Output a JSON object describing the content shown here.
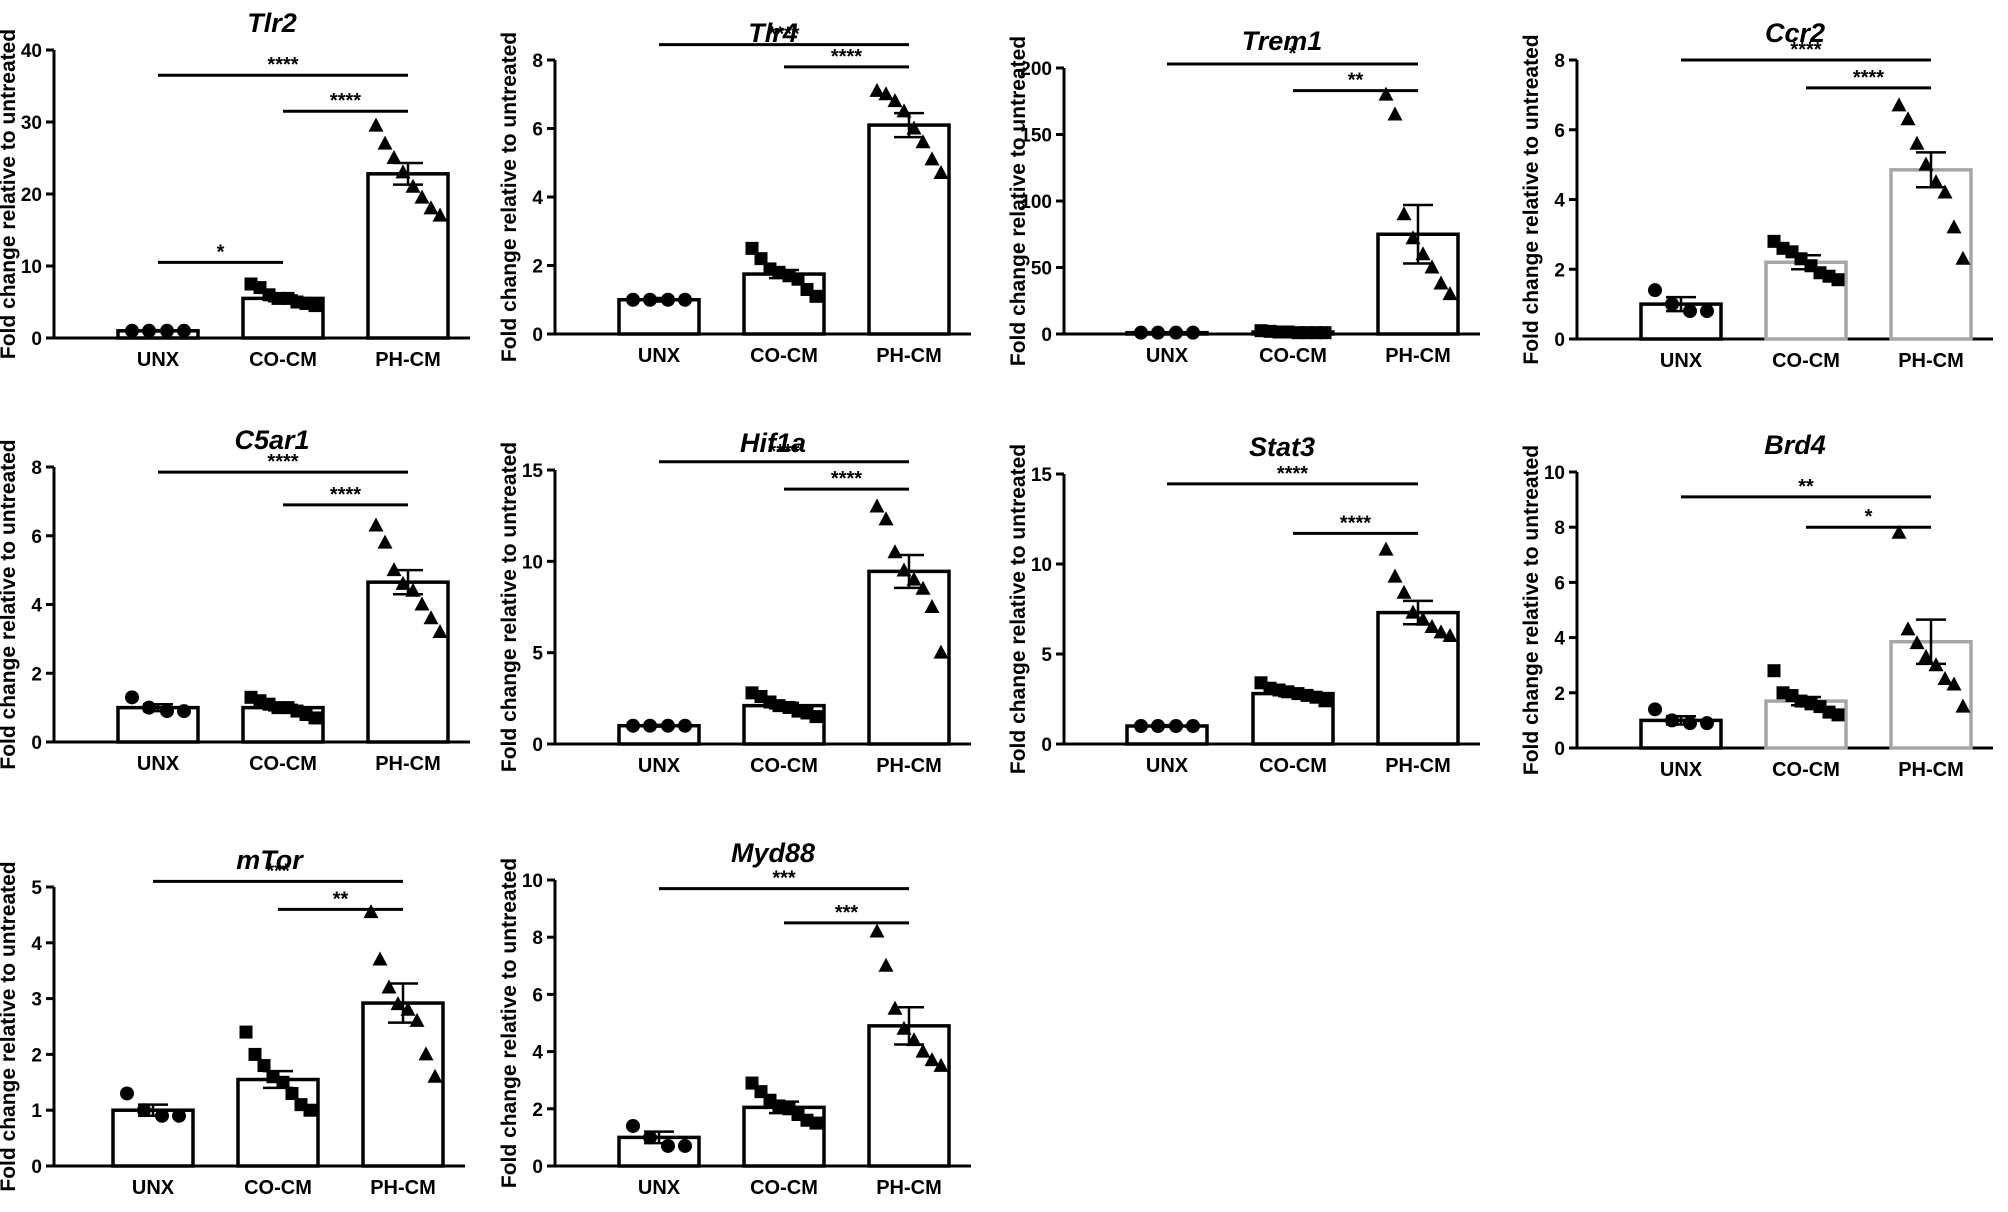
{
  "figure": {
    "ylabel": "Fold change relative to untreated",
    "categories": [
      "UNX",
      "CO-CM",
      "PH-CM"
    ]
  },
  "colors": {
    "black": "#000000",
    "gray": "#a6a6a6",
    "white": "#ffffff"
  },
  "chart_data": [
    {
      "type": "bar",
      "title": "Tlr2",
      "ylim": [
        0,
        40
      ],
      "yticks": [
        0,
        10,
        20,
        30,
        40
      ],
      "bar_color": "black",
      "series": [
        {
          "category": "UNX",
          "mean": 1.0,
          "sem": 0.1,
          "marker": "circle",
          "points": [
            1.0,
            1.0,
            1.0,
            1.0
          ]
        },
        {
          "category": "CO-CM",
          "mean": 5.5,
          "sem": 0.4,
          "marker": "square",
          "points": [
            7.5,
            7.0,
            6.0,
            5.5,
            5.5,
            5.0,
            4.8,
            4.5
          ]
        },
        {
          "category": "PH-CM",
          "mean": 22.8,
          "sem": 1.5,
          "marker": "triangle",
          "points": [
            29.5,
            27.0,
            25.0,
            23.0,
            21.0,
            19.5,
            18.0,
            17.0
          ]
        }
      ],
      "significance": [
        {
          "from": 0,
          "to": 1,
          "label": "*",
          "level": 10.5
        },
        {
          "from": 0,
          "to": 2,
          "label": "****",
          "level": 36.5
        },
        {
          "from": 1,
          "to": 2,
          "label": "****",
          "level": 31.5
        }
      ]
    },
    {
      "type": "bar",
      "title": "Tlr4",
      "ylim": [
        0,
        8
      ],
      "yticks": [
        0,
        2,
        4,
        6,
        8
      ],
      "bar_color": "black",
      "series": [
        {
          "category": "UNX",
          "mean": 1.0,
          "sem": 0.05,
          "marker": "circle",
          "points": [
            1.0,
            1.0,
            1.0,
            1.0
          ]
        },
        {
          "category": "CO-CM",
          "mean": 1.75,
          "sem": 0.12,
          "marker": "square",
          "points": [
            2.5,
            2.2,
            1.9,
            1.8,
            1.7,
            1.6,
            1.3,
            1.1
          ]
        },
        {
          "category": "PH-CM",
          "mean": 6.1,
          "sem": 0.35,
          "marker": "triangle",
          "points": [
            7.1,
            7.0,
            6.8,
            6.5,
            6.0,
            5.6,
            5.1,
            4.7
          ]
        }
      ],
      "significance": [
        {
          "from": 0,
          "to": 2,
          "label": "****",
          "level": 8.45
        },
        {
          "from": 1,
          "to": 2,
          "label": "****",
          "level": 7.8
        }
      ]
    },
    {
      "type": "bar",
      "title": "Trem1",
      "ylim": [
        0,
        200
      ],
      "yticks": [
        0,
        50,
        100,
        150,
        200
      ],
      "bar_color": "black",
      "series": [
        {
          "category": "UNX",
          "mean": 1.0,
          "sem": 0.1,
          "marker": "circle",
          "points": [
            1.0,
            1.0,
            1.0,
            1.0
          ]
        },
        {
          "category": "CO-CM",
          "mean": 1.5,
          "sem": 0.3,
          "marker": "square",
          "points": [
            2.5,
            2.0,
            1.5,
            1.5,
            1.0,
            1.0,
            1.0,
            1.0
          ]
        },
        {
          "category": "PH-CM",
          "mean": 75.0,
          "sem": 22.0,
          "marker": "triangle",
          "points": [
            180.0,
            165.0,
            90.0,
            72.0,
            60.0,
            50.0,
            38.0,
            30.0
          ]
        }
      ],
      "significance": [
        {
          "from": 0,
          "to": 2,
          "label": "*",
          "level": 203
        },
        {
          "from": 1,
          "to": 2,
          "label": "**",
          "level": 183
        }
      ]
    },
    {
      "type": "bar",
      "title": "Ccr2",
      "ylim": [
        0,
        8
      ],
      "yticks": [
        0,
        2,
        4,
        6,
        8
      ],
      "bar_color": "gray",
      "series": [
        {
          "category": "UNX",
          "mean": 1.0,
          "sem": 0.2,
          "marker": "circle",
          "points": [
            1.4,
            1.0,
            0.8,
            0.8
          ]
        },
        {
          "category": "CO-CM",
          "mean": 2.2,
          "sem": 0.2,
          "marker": "square",
          "points": [
            2.8,
            2.6,
            2.5,
            2.3,
            2.1,
            1.9,
            1.8,
            1.7
          ]
        },
        {
          "category": "PH-CM",
          "mean": 4.85,
          "sem": 0.5,
          "marker": "triangle",
          "points": [
            6.7,
            6.3,
            5.6,
            5.0,
            4.5,
            4.2,
            3.2,
            2.3
          ]
        }
      ],
      "significance": [
        {
          "from": 0,
          "to": 2,
          "label": "****",
          "level": 8.0
        },
        {
          "from": 1,
          "to": 2,
          "label": "****",
          "level": 7.2
        }
      ]
    },
    {
      "type": "bar",
      "title": "C5ar1",
      "ylim": [
        0,
        8
      ],
      "yticks": [
        0,
        2,
        4,
        6,
        8
      ],
      "bar_color": "black",
      "series": [
        {
          "category": "UNX",
          "mean": 1.0,
          "sem": 0.1,
          "marker": "circle",
          "points": [
            1.3,
            1.0,
            0.9,
            0.9
          ]
        },
        {
          "category": "CO-CM",
          "mean": 1.0,
          "sem": 0.08,
          "marker": "square",
          "points": [
            1.3,
            1.2,
            1.1,
            1.0,
            1.0,
            0.9,
            0.8,
            0.7
          ]
        },
        {
          "category": "PH-CM",
          "mean": 4.65,
          "sem": 0.35,
          "marker": "triangle",
          "points": [
            6.3,
            5.8,
            5.0,
            4.6,
            4.4,
            4.0,
            3.6,
            3.2
          ]
        }
      ],
      "significance": [
        {
          "from": 0,
          "to": 2,
          "label": "****",
          "level": 7.85
        },
        {
          "from": 1,
          "to": 2,
          "label": "****",
          "level": 6.9
        }
      ]
    },
    {
      "type": "bar",
      "title": "Hif1a",
      "ylim": [
        0,
        15
      ],
      "yticks": [
        0,
        5,
        10,
        15
      ],
      "bar_color": "black",
      "series": [
        {
          "category": "UNX",
          "mean": 1.0,
          "sem": 0.05,
          "marker": "circle",
          "points": [
            1.0,
            1.0,
            1.0,
            1.0
          ]
        },
        {
          "category": "CO-CM",
          "mean": 2.1,
          "sem": 0.15,
          "marker": "square",
          "points": [
            2.8,
            2.6,
            2.3,
            2.1,
            2.0,
            1.8,
            1.7,
            1.5
          ]
        },
        {
          "category": "PH-CM",
          "mean": 9.45,
          "sem": 0.9,
          "marker": "triangle",
          "points": [
            13.0,
            12.3,
            10.5,
            9.5,
            9.0,
            8.5,
            7.5,
            5.0
          ]
        }
      ],
      "significance": [
        {
          "from": 0,
          "to": 2,
          "label": "****",
          "level": 15.45
        },
        {
          "from": 1,
          "to": 2,
          "label": "****",
          "level": 13.95
        }
      ]
    },
    {
      "type": "bar",
      "title": "Stat3",
      "ylim": [
        0,
        15
      ],
      "yticks": [
        0,
        5,
        10,
        15
      ],
      "bar_color": "black",
      "series": [
        {
          "category": "UNX",
          "mean": 1.0,
          "sem": 0.05,
          "marker": "circle",
          "points": [
            1.0,
            1.0,
            1.0,
            1.0
          ]
        },
        {
          "category": "CO-CM",
          "mean": 2.8,
          "sem": 0.15,
          "marker": "square",
          "points": [
            3.4,
            3.1,
            3.0,
            2.9,
            2.8,
            2.7,
            2.6,
            2.4
          ]
        },
        {
          "category": "PH-CM",
          "mean": 7.3,
          "sem": 0.65,
          "marker": "triangle",
          "points": [
            10.8,
            9.3,
            8.4,
            7.3,
            6.9,
            6.5,
            6.2,
            6.0
          ]
        }
      ],
      "significance": [
        {
          "from": 0,
          "to": 2,
          "label": "****",
          "level": 14.45
        },
        {
          "from": 1,
          "to": 2,
          "label": "****",
          "level": 11.7
        }
      ]
    },
    {
      "type": "bar",
      "title": "Brd4",
      "ylim": [
        0,
        10
      ],
      "yticks": [
        0,
        2,
        4,
        6,
        8,
        10
      ],
      "bar_color": "gray",
      "series": [
        {
          "category": "UNX",
          "mean": 1.0,
          "sem": 0.15,
          "marker": "circle",
          "points": [
            1.4,
            1.0,
            0.9,
            0.9
          ]
        },
        {
          "category": "CO-CM",
          "mean": 1.7,
          "sem": 0.15,
          "marker": "square",
          "points": [
            2.8,
            2.0,
            1.9,
            1.7,
            1.6,
            1.5,
            1.3,
            1.2
          ]
        },
        {
          "category": "PH-CM",
          "mean": 3.85,
          "sem": 0.8,
          "marker": "triangle",
          "points": [
            7.8,
            4.3,
            3.8,
            3.3,
            3.0,
            2.5,
            2.3,
            1.5
          ]
        }
      ],
      "significance": [
        {
          "from": 0,
          "to": 2,
          "label": "**",
          "level": 9.1
        },
        {
          "from": 1,
          "to": 2,
          "label": "*",
          "level": 8.0
        }
      ]
    },
    {
      "type": "bar",
      "title": "mTor",
      "ylim": [
        0,
        5
      ],
      "yticks": [
        0,
        1,
        2,
        3,
        4,
        5
      ],
      "bar_color": "black",
      "series": [
        {
          "category": "UNX",
          "mean": 1.0,
          "sem": 0.1,
          "marker": "circle",
          "points": [
            1.3,
            1.0,
            0.9,
            0.9
          ]
        },
        {
          "category": "CO-CM",
          "mean": 1.55,
          "sem": 0.15,
          "marker": "square",
          "points": [
            2.4,
            2.0,
            1.8,
            1.6,
            1.5,
            1.3,
            1.1,
            1.0
          ]
        },
        {
          "category": "PH-CM",
          "mean": 2.92,
          "sem": 0.35,
          "marker": "triangle",
          "points": [
            4.55,
            3.7,
            3.2,
            2.9,
            2.8,
            2.6,
            2.0,
            1.6
          ]
        }
      ],
      "significance": [
        {
          "from": 0,
          "to": 2,
          "label": "***",
          "level": 5.1
        },
        {
          "from": 1,
          "to": 2,
          "label": "**",
          "level": 4.6
        }
      ]
    },
    {
      "type": "bar",
      "title": "Myd88",
      "ylim": [
        0,
        10
      ],
      "yticks": [
        0,
        2,
        4,
        6,
        8,
        10
      ],
      "bar_color": "black",
      "series": [
        {
          "category": "UNX",
          "mean": 1.0,
          "sem": 0.2,
          "marker": "circle",
          "points": [
            1.4,
            1.0,
            0.7,
            0.7
          ]
        },
        {
          "category": "CO-CM",
          "mean": 2.05,
          "sem": 0.2,
          "marker": "square",
          "points": [
            2.9,
            2.6,
            2.3,
            2.1,
            2.0,
            1.8,
            1.6,
            1.5
          ]
        },
        {
          "category": "PH-CM",
          "mean": 4.9,
          "sem": 0.65,
          "marker": "triangle",
          "points": [
            8.2,
            7.0,
            5.5,
            4.8,
            4.4,
            4.0,
            3.7,
            3.5
          ]
        }
      ],
      "significance": [
        {
          "from": 0,
          "to": 2,
          "label": "***",
          "level": 9.7
        },
        {
          "from": 1,
          "to": 2,
          "label": "***",
          "level": 8.5
        }
      ]
    }
  ]
}
